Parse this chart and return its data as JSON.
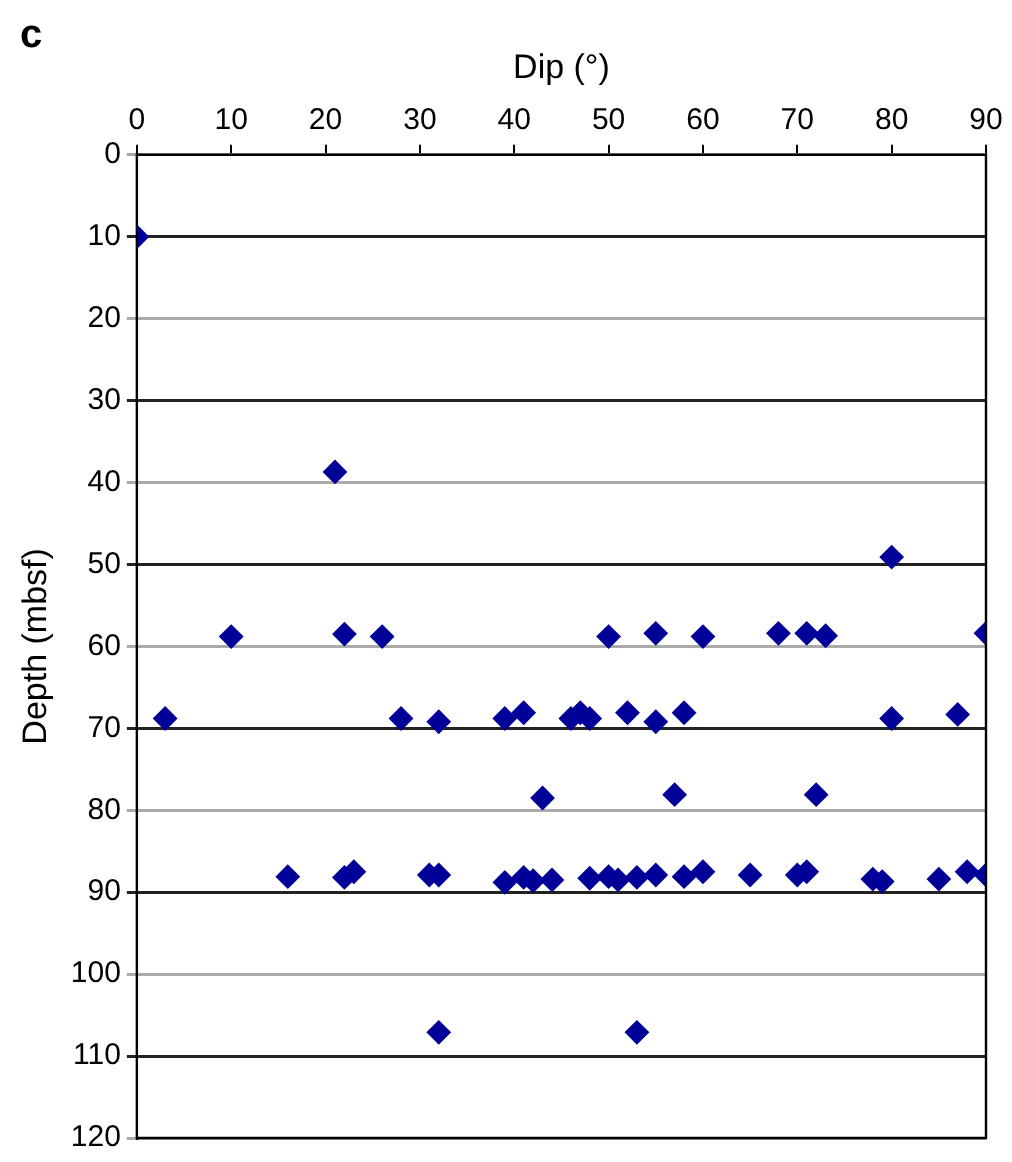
{
  "chart_data": {
    "type": "scatter",
    "xlabel": "Dip (°)",
    "ylabel": "Depth (mbsf)",
    "annotations": [
      "c"
    ],
    "xlim": [
      0,
      90
    ],
    "xticks": [
      0,
      10,
      20,
      30,
      40,
      50,
      60,
      70,
      80,
      90
    ],
    "ylim": [
      120,
      0
    ],
    "yticks": [
      0,
      10,
      20,
      30,
      40,
      50,
      60,
      70,
      80,
      90,
      100,
      110,
      120
    ],
    "grid": "y",
    "marker": "diamond",
    "legend": false,
    "series": [
      {
        "color": "#000099",
        "x": [
          0,
          21,
          10,
          22,
          26,
          50,
          55,
          60,
          68,
          71,
          73,
          90,
          80,
          3,
          28,
          32,
          39,
          41,
          46,
          47,
          48,
          52,
          55,
          58,
          80,
          87,
          43,
          57,
          72,
          16,
          22,
          23,
          31,
          32,
          39,
          41,
          42,
          44,
          48,
          50,
          51,
          53,
          55,
          58,
          60,
          65,
          70,
          71,
          78,
          79,
          85,
          88,
          90,
          32,
          53
        ],
        "values": [
          10,
          38.7,
          58.8,
          58.5,
          58.8,
          58.8,
          58.4,
          58.8,
          58.4,
          58.4,
          58.7,
          58.4,
          49.1,
          68.8,
          68.8,
          69.2,
          68.8,
          68.1,
          68.8,
          68.1,
          68.8,
          68.1,
          69.2,
          68.1,
          68.8,
          68.3,
          78.5,
          78.1,
          78.1,
          88.1,
          88.2,
          87.5,
          87.9,
          87.9,
          88.8,
          88.2,
          88.6,
          88.5,
          88.3,
          88.1,
          88.5,
          88.2,
          87.9,
          88.1,
          87.5,
          87.9,
          87.9,
          87.5,
          88.4,
          88.7,
          88.4,
          87.5,
          87.9,
          107.1,
          107.1
        ]
      }
    ]
  }
}
